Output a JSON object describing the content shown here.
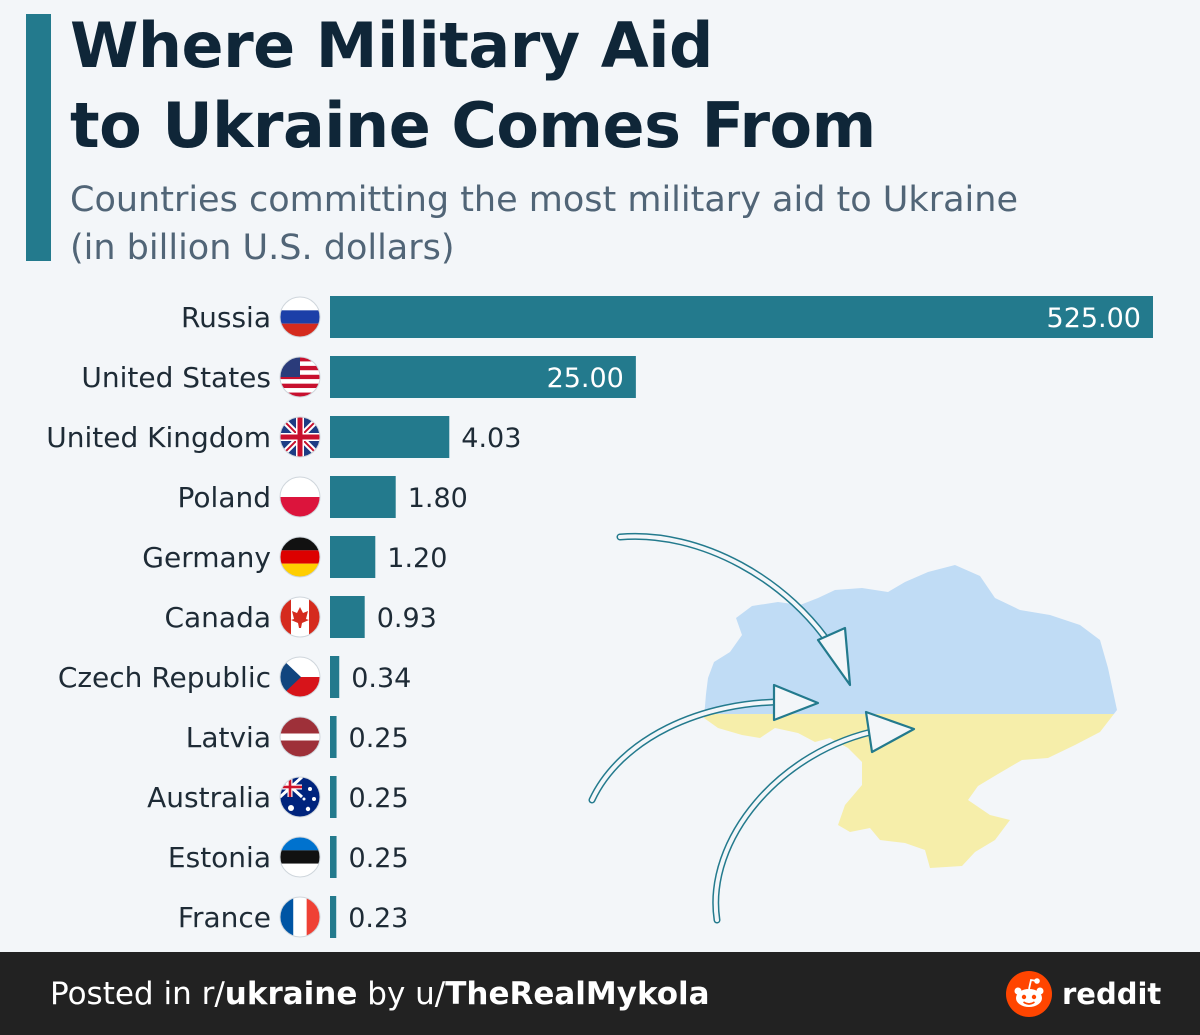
{
  "header": {
    "title_line1": "Where Military Aid",
    "title_line2": "to Ukraine Comes From",
    "subtitle_line1": "Countries committing the most military aid to Ukraine",
    "subtitle_line2": "(in billion U.S. dollars)"
  },
  "colors": {
    "accent": "#237a8d",
    "bar": "#237a8d",
    "title": "#0f2638",
    "subtitle": "#516577",
    "map_blue": "#c0dcf5",
    "map_yellow": "#f6eeaa",
    "footer_bg": "#222222",
    "reddit_orange": "#ff4500"
  },
  "chart_data": {
    "type": "bar",
    "orientation": "horizontal",
    "title": "Where Military Aid to Ukraine Comes From",
    "subtitle": "Countries committing the most military aid to Ukraine (in billion U.S. dollars)",
    "categories": [
      "Russia",
      "United States",
      "United Kingdom",
      "Poland",
      "Germany",
      "Canada",
      "Czech Republic",
      "Latvia",
      "Australia",
      "Estonia",
      "France"
    ],
    "values": [
      525.0,
      25.0,
      4.03,
      1.8,
      1.2,
      0.93,
      0.34,
      0.25,
      0.25,
      0.25,
      0.23
    ],
    "value_labels": [
      "525.00",
      "25.00",
      "4.03",
      "1.80",
      "1.20",
      "0.93",
      "0.34",
      "0.25",
      "0.25",
      "0.25",
      "0.23"
    ],
    "flag_icons": [
      "russia-flag-icon",
      "united-states-flag-icon",
      "united-kingdom-flag-icon",
      "poland-flag-icon",
      "germany-flag-icon",
      "canada-flag-icon",
      "czech-republic-flag-icon",
      "latvia-flag-icon",
      "australia-flag-icon",
      "estonia-flag-icon",
      "france-flag-icon"
    ],
    "xlabel": "",
    "ylabel": "",
    "grid": false,
    "legend": "none",
    "scale": "non-linear (bar lengths not proportional)"
  },
  "footer": {
    "prefix": "Posted in r/",
    "subreddit": "ukraine",
    "middle": " by u/",
    "username": "TheRealMykola",
    "brand": "reddit"
  }
}
